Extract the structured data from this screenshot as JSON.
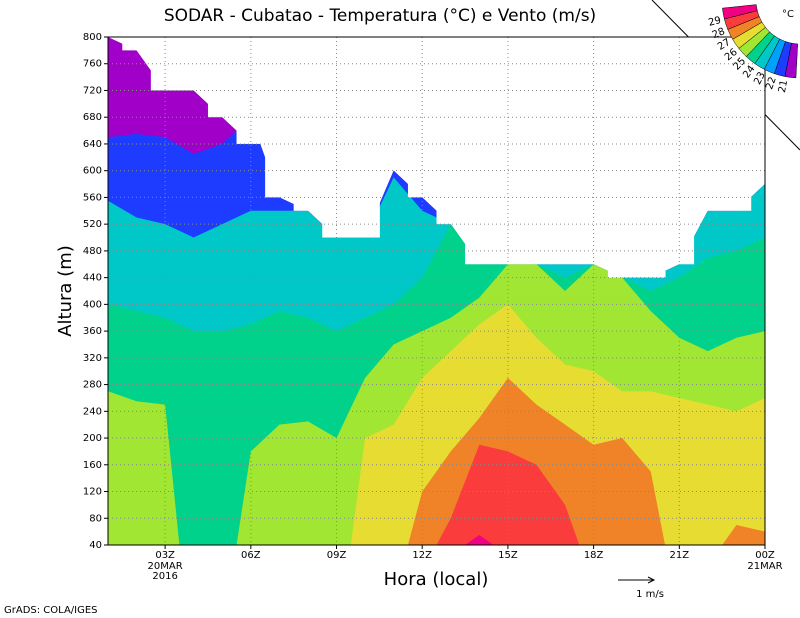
{
  "chart_data": {
    "type": "contour",
    "title": "SODAR - Cubatao - Temperatura (°C) e Vento (m/s)",
    "x_label": "Hora (local)",
    "y_label": "Altura (m)",
    "footer": "GrADS: COLA/IGES",
    "wind_scale_label": "1 m/s",
    "colorbar": {
      "unit": "°C",
      "labels": [
        29,
        28,
        27,
        26,
        25,
        24,
        23,
        22,
        21
      ],
      "colors": [
        "#f00082",
        "#fa3c3c",
        "#f08228",
        "#e6dc32",
        "#a0e632",
        "#00d28c",
        "#00c8c8",
        "#00a0ff",
        "#1e3cff",
        "#a000c8"
      ]
    },
    "xlim": [
      1,
      24
    ],
    "ylim": [
      40,
      800
    ],
    "xticks": [
      {
        "value": 3,
        "label": "03Z"
      },
      {
        "value": 6,
        "label": "06Z"
      },
      {
        "value": 9,
        "label": "09Z"
      },
      {
        "value": 12,
        "label": "12Z"
      },
      {
        "value": 15,
        "label": "15Z"
      },
      {
        "value": 18,
        "label": "18Z"
      },
      {
        "value": 21,
        "label": "21Z"
      },
      {
        "value": 24,
        "label": "00Z"
      }
    ],
    "x_date_labels": [
      {
        "value": 3,
        "lines": [
          "20MAR",
          "2016"
        ]
      },
      {
        "value": 24,
        "lines": [
          "21MAR"
        ]
      }
    ],
    "yticks": [
      40,
      80,
      120,
      160,
      200,
      240,
      280,
      320,
      360,
      400,
      440,
      480,
      520,
      560,
      600,
      640,
      680,
      720,
      760,
      800
    ],
    "grid": true,
    "x": [
      1,
      2,
      3,
      4,
      5,
      6,
      7,
      8,
      9,
      10,
      11,
      12,
      13,
      14,
      15,
      16,
      17,
      18,
      19,
      20,
      21,
      22,
      23,
      24
    ],
    "data_top": [
      800,
      780,
      720,
      720,
      680,
      640,
      560,
      540,
      500,
      500,
      600,
      560,
      520,
      460,
      460,
      460,
      460,
      460,
      440,
      440,
      460,
      540,
      540,
      580
    ],
    "base_color": "#a000c8",
    "series": [
      {
        "level": 22,
        "color": "#1e3cff",
        "values": [
          650,
          655,
          650,
          625,
          640,
          680,
          560,
          540,
          500,
          500,
          600,
          560,
          520,
          460,
          460,
          460,
          460,
          460,
          440,
          440,
          460,
          540,
          540,
          580
        ]
      },
      {
        "level": 23,
        "color": "#00c8c8",
        "values": [
          555,
          530,
          520,
          500,
          520,
          540,
          540,
          540,
          500,
          500,
          590,
          540,
          520,
          460,
          460,
          460,
          460,
          460,
          440,
          440,
          460,
          540,
          540,
          580
        ]
      },
      {
        "level": 24,
        "color": "#00d28c",
        "values": [
          400,
          390,
          380,
          360,
          360,
          370,
          390,
          380,
          360,
          380,
          400,
          440,
          520,
          460,
          460,
          460,
          440,
          460,
          440,
          420,
          440,
          470,
          480,
          500
        ]
      },
      {
        "level": 25,
        "color": "#a0e632",
        "values": [
          270,
          255,
          250,
          null,
          null,
          180,
          220,
          225,
          200,
          290,
          340,
          360,
          380,
          410,
          460,
          460,
          420,
          460,
          440,
          390,
          350,
          330,
          350,
          360
        ]
      },
      {
        "level": 26,
        "color": "#e6dc32",
        "values": [
          null,
          null,
          null,
          null,
          null,
          null,
          null,
          null,
          null,
          200,
          220,
          290,
          330,
          370,
          400,
          350,
          310,
          300,
          270,
          270,
          260,
          250,
          240,
          260
        ]
      },
      {
        "level": 27,
        "color": "#f08228",
        "values": [
          null,
          null,
          null,
          null,
          null,
          null,
          null,
          null,
          null,
          null,
          null,
          120,
          180,
          230,
          290,
          250,
          220,
          190,
          200,
          150,
          null,
          null,
          70,
          60
        ]
      },
      {
        "level": 28,
        "color": "#fa3c3c",
        "values": [
          null,
          null,
          null,
          null,
          null,
          null,
          null,
          null,
          null,
          null,
          null,
          null,
          80,
          190,
          180,
          160,
          100,
          null,
          null,
          null,
          null,
          null,
          null,
          null
        ]
      },
      {
        "level": 29,
        "color": "#f00082",
        "values": [
          null,
          null,
          null,
          null,
          null,
          null,
          null,
          null,
          null,
          null,
          null,
          null,
          null,
          55,
          null,
          null,
          null,
          null,
          null,
          null,
          null,
          null,
          null,
          null
        ]
      }
    ]
  }
}
